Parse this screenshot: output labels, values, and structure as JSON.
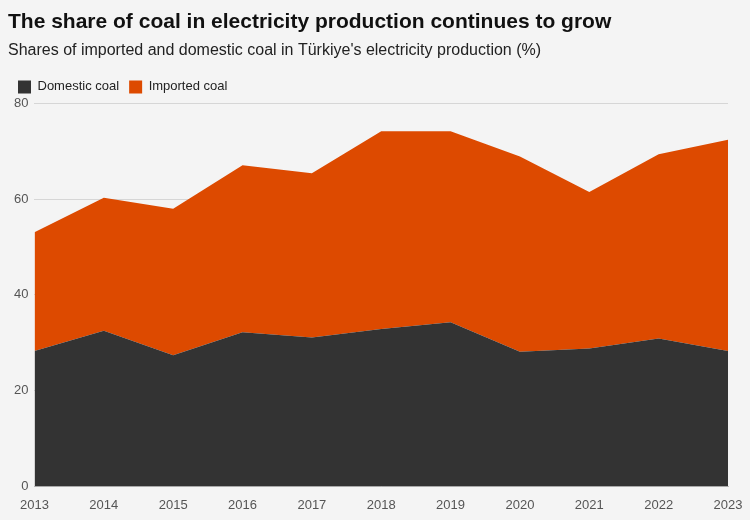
{
  "chart_data": {
    "type": "area",
    "title": "The share of coal in electricity production continues to grow",
    "subtitle": "Shares of imported and domestic coal in Türkiye's electricity production (%)",
    "categories": [
      "2013",
      "2014",
      "2015",
      "2016",
      "2017",
      "2018",
      "2019",
      "2020",
      "2021",
      "2022",
      "2023"
    ],
    "series": [
      {
        "name": "Domestic coal",
        "color": "#333333",
        "values": [
          28.3,
          32.5,
          27.4,
          32.2,
          31.1,
          32.9,
          34.3,
          28.1,
          28.8,
          30.9,
          28.3
        ]
      },
      {
        "name": "Imported coal",
        "color": "#dd4a00",
        "values": [
          24.8,
          27.8,
          30.6,
          34.9,
          34.3,
          41.3,
          39.9,
          40.8,
          32.7,
          38.5,
          44.1
        ]
      }
    ],
    "ylim": [
      0,
      80
    ],
    "yticks": [
      0,
      20,
      40,
      60,
      80
    ],
    "stacked": true,
    "grid": true,
    "legend": "top-left"
  }
}
